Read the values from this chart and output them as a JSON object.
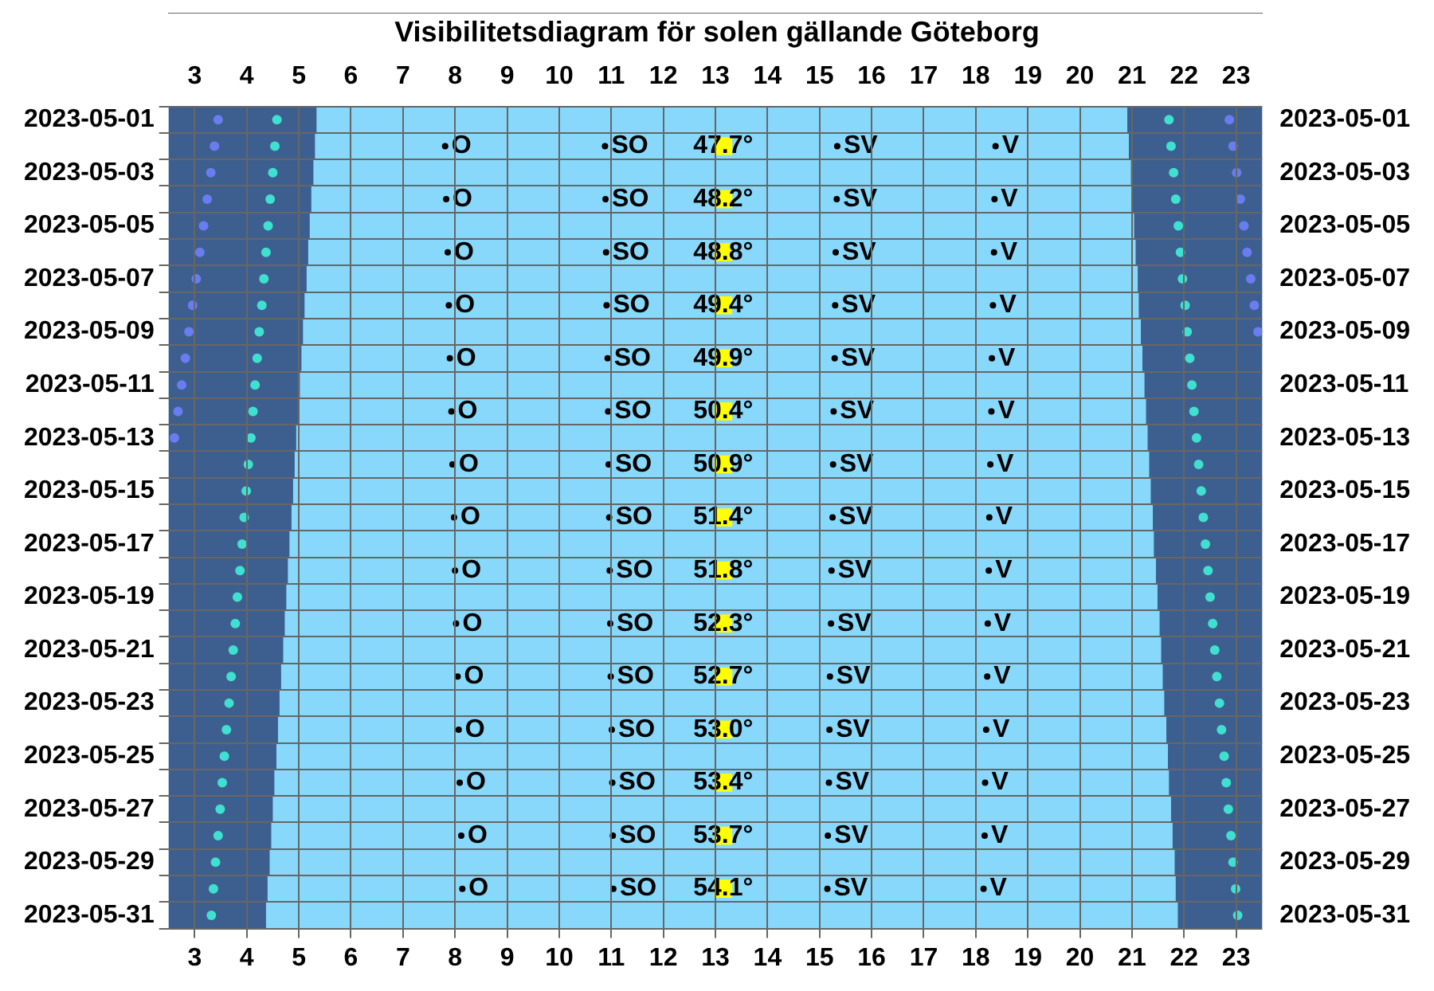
{
  "chart_data": {
    "type": "bar",
    "orientation": "horizontal",
    "title": "Visibilitetsdiagram för solen gällande Göteborg",
    "categories": [
      "2023-05-01",
      null,
      "2023-05-03",
      null,
      "2023-05-05",
      null,
      "2023-05-07",
      null,
      "2023-05-09",
      null,
      "2023-05-11",
      null,
      "2023-05-13",
      null,
      "2023-05-15",
      null,
      "2023-05-17",
      null,
      "2023-05-19",
      null,
      "2023-05-21",
      null,
      "2023-05-23",
      null,
      "2023-05-25",
      null,
      "2023-05-27",
      null,
      "2023-05-29",
      null,
      "2023-05-31"
    ],
    "xlim": [
      2.5,
      23.5
    ],
    "xticks": [
      3,
      4,
      5,
      6,
      7,
      8,
      9,
      10,
      11,
      12,
      13,
      14,
      15,
      16,
      17,
      18,
      19,
      20,
      21,
      22,
      23
    ],
    "x2lim": [
      2.5,
      23.5
    ],
    "x2ticks": [
      3,
      4,
      5,
      6,
      7,
      8,
      9,
      10,
      11,
      12,
      13,
      14,
      15,
      16,
      17,
      18,
      19,
      20,
      21,
      22,
      23
    ],
    "grid": true,
    "annotations": [
      "47.7°",
      "48.2°",
      "48.8°",
      "49.4°",
      "49.9°",
      "50.4°",
      "50.9°",
      "51.4°",
      "51.8°",
      "52.3°",
      "52.7°",
      "53.0°",
      "53.4°",
      "53.7°",
      "54.1°"
    ],
    "bands": [
      {
        "axis": "x",
        "from": 2.5,
        "to": 23.5,
        "color": "#3d5f8f"
      }
    ],
    "series": [
      {
        "type": "bar",
        "color": "#87d8fa",
        "base": [
          5.35,
          5.32,
          5.29,
          5.25,
          5.22,
          5.19,
          5.16,
          5.12,
          5.09,
          5.06,
          5.03,
          5.0,
          4.96,
          4.93,
          4.9,
          4.87,
          4.83,
          4.8,
          4.77,
          4.74,
          4.71,
          4.67,
          4.64,
          4.61,
          4.58,
          4.54,
          4.51,
          4.48,
          4.45,
          4.41,
          4.38
        ],
        "values": [
          15.55,
          15.61,
          15.68,
          15.74,
          15.81,
          15.87,
          15.94,
          16.0,
          16.07,
          16.13,
          16.2,
          16.26,
          16.33,
          16.39,
          16.45,
          16.52,
          16.58,
          16.65,
          16.71,
          16.78,
          16.84,
          16.91,
          16.97,
          17.04,
          17.1,
          17.16,
          17.23,
          17.29,
          17.36,
          17.42,
          17.49
        ]
      },
      {
        "type": "scatter",
        "color": "#40e0d0",
        "marker": "circle",
        "values": [
          4.58,
          4.54,
          4.5,
          4.45,
          4.41,
          4.37,
          4.33,
          4.29,
          4.24,
          4.2,
          4.16,
          4.12,
          4.08,
          4.03,
          3.99,
          3.95,
          3.91,
          3.87,
          3.82,
          3.78,
          3.74,
          3.7,
          3.66,
          3.61,
          3.57,
          3.53,
          3.49,
          3.45,
          3.4,
          3.36,
          3.32
        ]
      },
      {
        "type": "scatter",
        "color": "#6a7cf0",
        "marker": "circle",
        "values": [
          3.45,
          3.38,
          3.31,
          3.24,
          3.17,
          3.1,
          3.03,
          2.96,
          2.89,
          2.82,
          2.75,
          2.68,
          2.61,
          null,
          null,
          null,
          null,
          null,
          null,
          null,
          null,
          null,
          null,
          null,
          null,
          null,
          null,
          null,
          null,
          null,
          null
        ]
      },
      {
        "type": "scatter",
        "color": "#40e0d0",
        "marker": "circle",
        "values": [
          21.71,
          21.75,
          21.8,
          21.84,
          21.89,
          21.93,
          21.97,
          22.02,
          22.06,
          22.11,
          22.15,
          22.19,
          22.24,
          22.28,
          22.33,
          22.37,
          22.41,
          22.46,
          22.5,
          22.55,
          22.59,
          22.63,
          22.68,
          22.72,
          22.77,
          22.81,
          22.85,
          22.9,
          22.94,
          22.99,
          23.03
        ]
      },
      {
        "type": "scatter",
        "color": "#6a7cf0",
        "marker": "circle",
        "values": [
          22.87,
          22.94,
          23.01,
          23.08,
          23.15,
          23.21,
          23.28,
          23.35,
          23.42,
          null,
          null,
          null,
          null,
          null,
          null,
          null,
          null,
          null,
          null,
          null,
          null,
          null,
          null,
          null,
          null,
          null,
          null,
          null,
          null,
          null,
          null
        ]
      },
      {
        "type": "scatter",
        "color": "#ffff00",
        "marker": "square",
        "values": [
          null,
          13.15,
          null,
          13.15,
          null,
          13.15,
          null,
          13.15,
          null,
          13.15,
          null,
          13.15,
          null,
          13.15,
          null,
          13.15,
          null,
          13.15,
          null,
          13.15,
          null,
          13.15,
          null,
          13.15,
          null,
          13.15,
          null,
          13.15,
          null,
          13.15,
          null
        ]
      },
      {
        "type": "scatter",
        "color": "#000000",
        "marker": "circle",
        "values": [
          null,
          7.81,
          null,
          7.83,
          null,
          7.86,
          null,
          7.88,
          null,
          7.9,
          null,
          7.93,
          null,
          7.95,
          null,
          7.98,
          null,
          8.0,
          null,
          8.02,
          null,
          8.05,
          null,
          8.07,
          null,
          8.09,
          null,
          8.12,
          null,
          8.14,
          null
        ],
        "value_labels": [
          null,
          "O",
          null,
          "O",
          null,
          "O",
          null,
          "O",
          null,
          "O",
          null,
          "O",
          null,
          "O",
          null,
          "O",
          null,
          "O",
          null,
          "O",
          null,
          "O",
          null,
          "O",
          null,
          "O",
          null,
          "O",
          null,
          "O",
          null
        ]
      },
      {
        "type": "scatter",
        "color": "#000000",
        "marker": "circle",
        "values": [
          null,
          10.88,
          null,
          10.89,
          null,
          10.9,
          null,
          10.91,
          null,
          10.93,
          null,
          10.94,
          null,
          10.95,
          null,
          10.96,
          null,
          10.97,
          null,
          10.98,
          null,
          10.99,
          null,
          11.01,
          null,
          11.02,
          null,
          11.03,
          null,
          11.04,
          null
        ],
        "value_labels": [
          null,
          "SO",
          null,
          "SO",
          null,
          "SO",
          null,
          "SO",
          null,
          "SO",
          null,
          "SO",
          null,
          "SO",
          null,
          "SO",
          null,
          "SO",
          null,
          "SO",
          null,
          "SO",
          null,
          "SO",
          null,
          "SO",
          null,
          "SO",
          null,
          "SO",
          null
        ]
      },
      {
        "type": "scatter",
        "color": "#000000",
        "marker": "circle",
        "values": [
          null,
          15.34,
          null,
          15.33,
          null,
          15.31,
          null,
          15.3,
          null,
          15.29,
          null,
          15.27,
          null,
          15.26,
          null,
          15.25,
          null,
          15.23,
          null,
          15.22,
          null,
          15.2,
          null,
          15.19,
          null,
          15.18,
          null,
          15.16,
          null,
          15.15,
          null
        ],
        "value_labels": [
          null,
          "SV",
          null,
          "SV",
          null,
          "SV",
          null,
          "SV",
          null,
          "SV",
          null,
          "SV",
          null,
          "SV",
          null,
          "SV",
          null,
          "SV",
          null,
          "SV",
          null,
          "SV",
          null,
          "SV",
          null,
          "SV",
          null,
          "SV",
          null,
          "SV",
          null
        ]
      },
      {
        "type": "scatter",
        "color": "#000000",
        "marker": "circle",
        "values": [
          null,
          18.38,
          null,
          18.36,
          null,
          18.35,
          null,
          18.33,
          null,
          18.31,
          null,
          18.3,
          null,
          18.28,
          null,
          18.26,
          null,
          18.25,
          null,
          18.23,
          null,
          18.22,
          null,
          18.2,
          null,
          18.18,
          null,
          18.17,
          null,
          18.15,
          null
        ],
        "value_labels": [
          null,
          "V",
          null,
          "V",
          null,
          "V",
          null,
          "V",
          null,
          "V",
          null,
          "V",
          null,
          "V",
          null,
          "V",
          null,
          "V",
          null,
          "V",
          null,
          "V",
          null,
          "V",
          null,
          "V",
          null,
          "V",
          null,
          "V",
          null
        ]
      }
    ]
  }
}
